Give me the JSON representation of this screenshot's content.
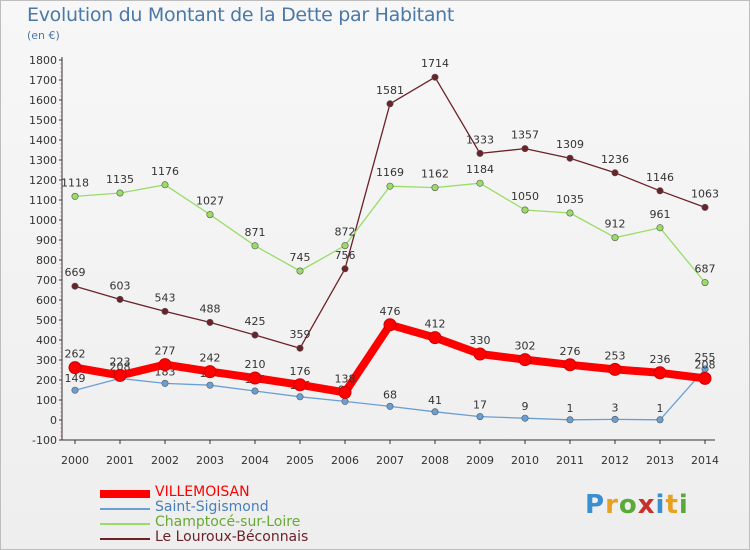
{
  "title": "Evolution du Montant de la Dette par Habitant",
  "subtitle": "(en €)",
  "logo": "Proxiti",
  "chart_data": {
    "type": "line",
    "title": "Evolution du Montant de la Dette par Habitant",
    "ylabel": "(en €)",
    "xlabel": "",
    "x": [
      2000,
      2001,
      2002,
      2003,
      2004,
      2005,
      2006,
      2007,
      2008,
      2009,
      2010,
      2011,
      2012,
      2013,
      2014
    ],
    "ylim": [
      -100,
      1800
    ],
    "yticks": [
      -100,
      0,
      100,
      200,
      300,
      400,
      500,
      600,
      700,
      800,
      900,
      1000,
      1100,
      1200,
      1300,
      1400,
      1500,
      1600,
      1700,
      1800
    ],
    "grid": false,
    "legend_position": "bottom-left",
    "series": [
      {
        "name": "VILLEMOISAN",
        "color": "#ff0000",
        "values": [
          262,
          223,
          277,
          242,
          210,
          176,
          138,
          476,
          412,
          330,
          302,
          276,
          253,
          236,
          208
        ],
        "labels": [
          "262",
          "223",
          "277",
          "242",
          "210",
          "176",
          "138",
          "476",
          "412",
          "330",
          "302",
          "276",
          "253",
          "236",
          "208"
        ]
      },
      {
        "name": "Saint-Sigismond",
        "color": "#6a9fd4",
        "values": [
          149,
          208,
          183,
          174,
          145,
          116,
          93,
          68,
          41,
          17,
          9,
          1,
          3,
          1,
          255
        ],
        "labels": [
          "149",
          "208",
          "183",
          "174",
          "145",
          "116",
          "93",
          "68",
          "41",
          "17",
          "9",
          "1",
          "3",
          "1",
          "255"
        ]
      },
      {
        "name": "Champtocé-sur-Loire",
        "color": "#99dd66",
        "values": [
          1118,
          1135,
          1176,
          1027,
          871,
          745,
          872,
          1169,
          1162,
          1184,
          1050,
          1035,
          912,
          961,
          687
        ],
        "labels": [
          "1118",
          "1135",
          "1176",
          "1027",
          "871",
          "745",
          "872",
          "1169",
          "1162",
          "1184",
          "1050",
          "1035",
          "912",
          "961",
          "687"
        ]
      },
      {
        "name": "Le Louroux-Béconnais",
        "color": "#6b2228",
        "values": [
          669,
          603,
          543,
          488,
          425,
          359,
          756,
          1581,
          1714,
          1333,
          1357,
          1309,
          1236,
          1146,
          1063
        ],
        "labels": [
          "669",
          "603",
          "543",
          "488",
          "425",
          "359",
          "756",
          "1581",
          "1714",
          "1333",
          "1357",
          "1309",
          "1236",
          "1146",
          "1063"
        ]
      }
    ]
  }
}
